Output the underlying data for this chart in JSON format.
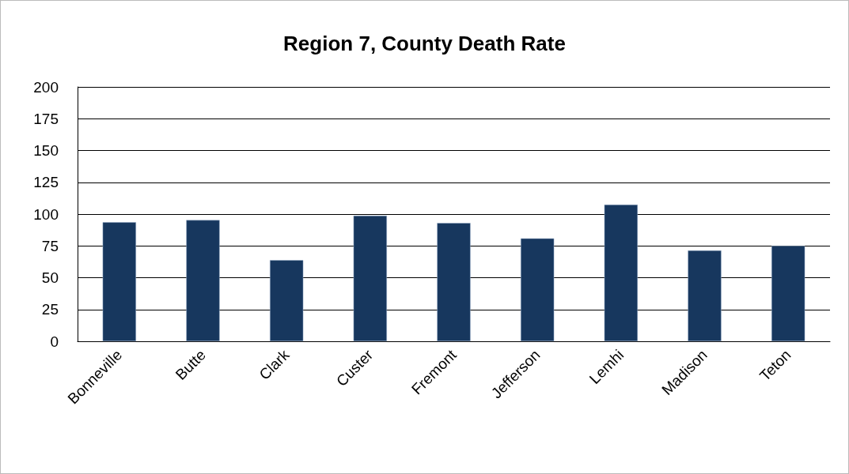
{
  "chart_data": {
    "type": "bar",
    "title": "Region 7, County Death Rate",
    "categories": [
      "Bonneville",
      "Butte",
      "Clark",
      "Custer",
      "Fremont",
      "Jefferson",
      "Lemhi",
      "Madison",
      "Teton"
    ],
    "values": [
      93.6,
      95.3,
      63.8,
      98.7,
      93.0,
      80.9,
      107.4,
      71.4,
      75.0
    ],
    "color": "#17375e",
    "ylim": [
      0,
      200
    ],
    "yticks": [
      0,
      25,
      50,
      75,
      100,
      125,
      150,
      175,
      200
    ],
    "grid": "y"
  }
}
